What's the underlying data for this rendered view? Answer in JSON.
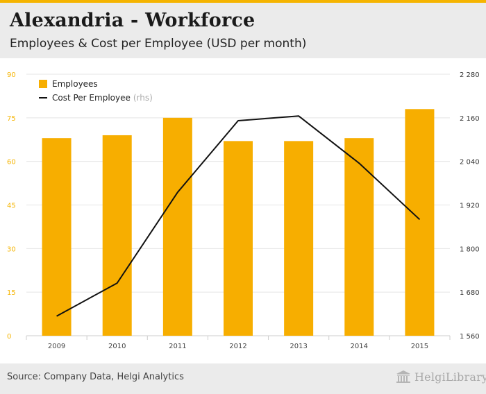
{
  "header": {
    "title": "Alexandria - Workforce",
    "subtitle": "Employees & Cost per Employee (USD per month)"
  },
  "footer": {
    "source": "Source: Company Data, Helgi Analytics",
    "logo_text": "HelgiLibrary."
  },
  "colors": {
    "bar": "#f7ae00",
    "line": "#111111",
    "left_axis_text": "#f5b400",
    "right_axis_text": "#333333",
    "grid": "#e4e4e4",
    "accent_bar": "#f5b400"
  },
  "chart_data": {
    "type": "bar",
    "title": "Alexandria - Workforce",
    "subtitle": "Employees & Cost per Employee (USD per month)",
    "categories": [
      "2009",
      "2010",
      "2011",
      "2012",
      "2013",
      "2014",
      "2015"
    ],
    "series": [
      {
        "name": "Employees",
        "type": "bar",
        "axis": "left",
        "values": [
          68,
          69,
          75,
          67,
          67,
          68,
          78
        ]
      },
      {
        "name": "Cost Per Employee",
        "legend_suffix": "(rhs)",
        "type": "line",
        "axis": "right",
        "values": [
          1614,
          1705,
          1955,
          2152,
          2165,
          2035,
          1880
        ]
      }
    ],
    "y_left": {
      "min": 0,
      "max": 90,
      "ticks": [
        0,
        15,
        30,
        45,
        60,
        75,
        90
      ],
      "tick_labels": [
        "0",
        "15",
        "30",
        "45",
        "60",
        "75",
        "90"
      ]
    },
    "y_right": {
      "min": 1560,
      "max": 2280,
      "ticks": [
        1560,
        1680,
        1800,
        1920,
        2040,
        2160,
        2280
      ],
      "tick_labels": [
        "1 560",
        "1 680",
        "1 800",
        "1 920",
        "2 040",
        "2 160",
        "2 280"
      ]
    },
    "legend": [
      {
        "label": "Employees",
        "suffix": ""
      },
      {
        "label": "Cost Per Employee",
        "suffix": "(rhs)"
      }
    ],
    "legend_position": "top-left",
    "grid": true
  }
}
